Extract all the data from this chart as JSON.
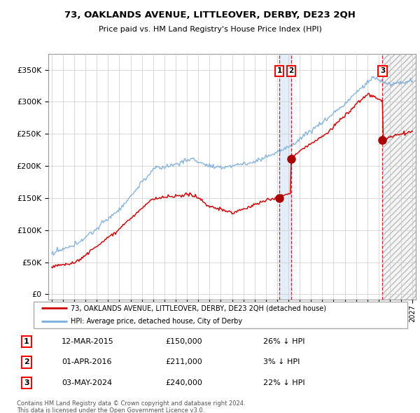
{
  "title": "73, OAKLANDS AVENUE, LITTLEOVER, DERBY, DE23 2QH",
  "subtitle": "Price paid vs. HM Land Registry's House Price Index (HPI)",
  "legend_line1": "73, OAKLANDS AVENUE, LITTLEOVER, DERBY, DE23 2QH (detached house)",
  "legend_line2": "HPI: Average price, detached house, City of Derby",
  "footer1": "Contains HM Land Registry data © Crown copyright and database right 2024.",
  "footer2": "This data is licensed under the Open Government Licence v3.0.",
  "transactions": [
    {
      "num": 1,
      "date": "12-MAR-2015",
      "price": 150000,
      "pct": "26%",
      "x": 2015.2
    },
    {
      "num": 2,
      "date": "01-APR-2016",
      "price": 211000,
      "pct": "3%",
      "x": 2016.25
    },
    {
      "num": 3,
      "date": "03-MAY-2024",
      "price": 240000,
      "pct": "22%",
      "x": 2024.35
    }
  ],
  "hpi_color": "#7aaddc",
  "price_color": "#cc0000",
  "marker_color": "#aa0000",
  "dashed_color": "#cc0000",
  "yticks": [
    0,
    50000,
    100000,
    150000,
    200000,
    250000,
    300000,
    350000
  ],
  "ylim": [
    -8000,
    375000
  ],
  "xlim": [
    1994.7,
    2027.3
  ],
  "background_color": "#ffffff",
  "grid_color": "#cccccc"
}
